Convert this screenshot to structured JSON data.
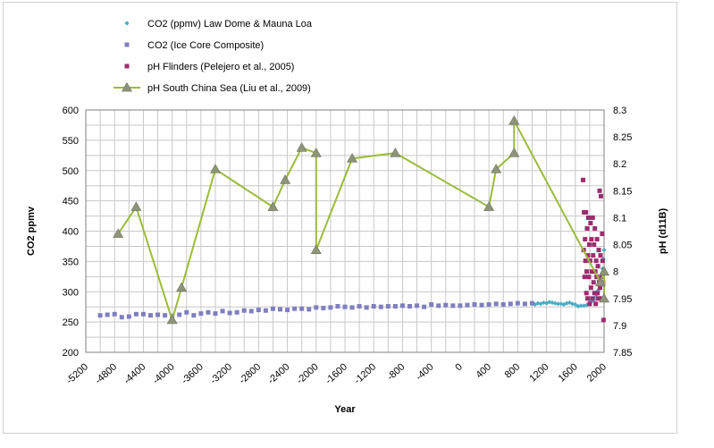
{
  "chart_data": {
    "type": "scatter",
    "title": "",
    "xlabel": "Year",
    "ylabel": "CO2 ppmv",
    "y2label": "pH (d11B)",
    "xlim": [
      -5200,
      2000
    ],
    "xticks": [
      -5200,
      -4800,
      -4400,
      -4000,
      -3600,
      -3200,
      -2800,
      -2400,
      -2000,
      -1600,
      -1200,
      -800,
      -400,
      0,
      400,
      800,
      1200,
      1600,
      2000
    ],
    "ylim": [
      200,
      600
    ],
    "yticks": [
      200,
      250,
      300,
      350,
      400,
      450,
      500,
      550,
      600
    ],
    "y2lim": [
      7.85,
      8.3
    ],
    "y2ticks": [
      "7.85",
      "7.9",
      "7.95",
      "8",
      "8.05",
      "8.1",
      "8.15",
      "8.2",
      "8.25",
      "8.3"
    ],
    "grid": true,
    "legend_position": "top-left, above plot",
    "series": [
      {
        "name": "CO2 (ppmv) Law Dome & Mauna Loa",
        "axis": "left",
        "marker": "diamond",
        "color": "#4bacc6",
        "x": [
          1000,
          1040,
          1080,
          1120,
          1160,
          1200,
          1240,
          1280,
          1320,
          1360,
          1400,
          1440,
          1480,
          1520,
          1560,
          1600,
          1640,
          1680,
          1720,
          1760,
          1800,
          1830,
          1860,
          1880,
          1900,
          1920,
          1940,
          1950,
          1960,
          1970,
          1980,
          1990,
          2000
        ],
        "y": [
          280,
          279,
          281,
          280,
          282,
          281,
          283,
          282,
          281,
          280,
          280,
          279,
          281,
          282,
          280,
          279,
          276,
          277,
          277,
          278,
          283,
          284,
          286,
          291,
          296,
          303,
          310,
          312,
          317,
          326,
          338,
          354,
          369
        ]
      },
      {
        "name": "CO2 (Ice Core Composite)",
        "axis": "left",
        "marker": "square",
        "color": "#7f7fbf",
        "x": [
          -5000,
          -4900,
          -4800,
          -4700,
          -4600,
          -4500,
          -4400,
          -4300,
          -4200,
          -4100,
          -4000,
          -3900,
          -3800,
          -3700,
          -3600,
          -3500,
          -3400,
          -3300,
          -3200,
          -3100,
          -3000,
          -2900,
          -2800,
          -2700,
          -2600,
          -2500,
          -2400,
          -2300,
          -2200,
          -2100,
          -2000,
          -1900,
          -1800,
          -1700,
          -1600,
          -1500,
          -1400,
          -1300,
          -1200,
          -1100,
          -1000,
          -900,
          -800,
          -700,
          -600,
          -500,
          -400,
          -300,
          -200,
          -100,
          0,
          100,
          200,
          300,
          400,
          500,
          600,
          700,
          800,
          900,
          1000
        ],
        "y": [
          261,
          262,
          263,
          258,
          259,
          263,
          263,
          261,
          262,
          261,
          260,
          262,
          266,
          261,
          264,
          266,
          264,
          268,
          265,
          266,
          269,
          268,
          270,
          269,
          272,
          271,
          270,
          272,
          272,
          271,
          274,
          273,
          274,
          276,
          275,
          274,
          276,
          274,
          276,
          275,
          276,
          276,
          277,
          276,
          277,
          275,
          279,
          277,
          278,
          277,
          277,
          278,
          279,
          278,
          279,
          280,
          279,
          280,
          281,
          280,
          281
        ]
      },
      {
        "name": "pH Flinders (Pelejero et al., 2005)",
        "axis": "right",
        "marker": "square",
        "color": "#9b2d6e",
        "x": [
          1708,
          1716,
          1722,
          1730,
          1736,
          1742,
          1748,
          1754,
          1758,
          1764,
          1770,
          1776,
          1782,
          1788,
          1794,
          1800,
          1806,
          1812,
          1818,
          1824,
          1830,
          1836,
          1842,
          1848,
          1854,
          1860,
          1866,
          1872,
          1878,
          1884,
          1890,
          1896,
          1902,
          1908,
          1914,
          1920,
          1926,
          1932,
          1938,
          1944,
          1950,
          1956,
          1962,
          1968,
          1974,
          1980,
          1986,
          1992
        ],
        "y": [
          8.17,
          8.04,
          8.11,
          7.99,
          8.06,
          8.02,
          8.11,
          7.96,
          8.0,
          8.08,
          7.95,
          8.03,
          8.1,
          7.99,
          8.05,
          7.94,
          8.02,
          8.09,
          7.97,
          8.06,
          8.0,
          7.95,
          8.1,
          8.03,
          7.98,
          8.05,
          7.96,
          8.08,
          8.0,
          7.94,
          8.02,
          7.99,
          8.06,
          7.96,
          8.01,
          7.95,
          8.04,
          7.98,
          8.15,
          7.97,
          8.03,
          8.14,
          7.99,
          7.95,
          8.07,
          8.02,
          7.98,
          7.91
        ]
      },
      {
        "name": "pH South China Sea (Liu et al., 2009)",
        "axis": "right",
        "marker": "triangle",
        "color": "#9bbb3b",
        "x": [
          -4750,
          -4500,
          -4000,
          -3870,
          -3400,
          -2600,
          -2430,
          -2200,
          -2000,
          -2000,
          -1500,
          -900,
          400,
          500,
          750,
          750,
          1950,
          2000,
          2000
        ],
        "y": [
          8.07,
          8.12,
          7.91,
          7.97,
          8.19,
          8.12,
          8.17,
          8.23,
          8.22,
          8.04,
          8.21,
          8.22,
          8.12,
          8.19,
          8.22,
          8.28,
          7.98,
          8.0,
          7.95
        ]
      }
    ]
  }
}
